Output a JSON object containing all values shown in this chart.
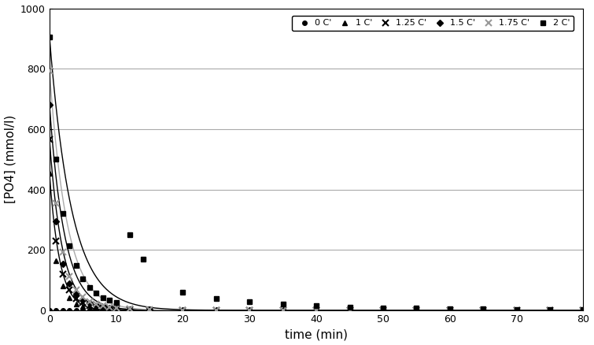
{
  "title": "",
  "xlabel": "time (min)",
  "ylabel": "[PO4] (mmol/l)",
  "xlim": [
    0,
    80
  ],
  "ylim": [
    0,
    1000
  ],
  "yticks": [
    0,
    200,
    400,
    600,
    800,
    1000
  ],
  "xticks": [
    0,
    10,
    20,
    30,
    40,
    50,
    60,
    70,
    80
  ],
  "background_color": "#ffffff",
  "grid_color": "#aaaaaa",
  "series": [
    {
      "label": "0 C'",
      "marker": "o",
      "color": "black",
      "markersize": 4,
      "t": [
        0,
        1,
        2,
        3,
        4,
        5,
        6,
        7,
        8,
        9,
        10,
        12,
        15,
        20,
        25,
        30,
        35,
        40,
        45,
        50,
        55,
        60,
        65,
        70,
        75,
        80
      ],
      "y": [
        0,
        0,
        0,
        0,
        0,
        0,
        0,
        0,
        0,
        0,
        0,
        0,
        0,
        0,
        0,
        0,
        0,
        0,
        0,
        0,
        0,
        0,
        0,
        0,
        0,
        0
      ],
      "C0": 0,
      "k": 1.0
    },
    {
      "label": "1 C'",
      "marker": "^",
      "color": "black",
      "markersize": 5,
      "t": [
        0,
        1,
        2,
        3,
        4,
        5,
        6,
        7,
        8,
        9,
        10,
        12,
        15,
        20,
        25,
        30,
        35,
        40,
        45,
        50,
        55,
        60,
        65,
        70,
        75,
        80
      ],
      "y": [
        453,
        165,
        80,
        42,
        22,
        12,
        7,
        4,
        3,
        2,
        1,
        1,
        0,
        0,
        0,
        0,
        0,
        0,
        0,
        0,
        0,
        0,
        0,
        0,
        0,
        0
      ],
      "C0": 453,
      "k": 0.65
    },
    {
      "label": "1.25 C'",
      "marker": "x",
      "color": "black",
      "markersize": 6,
      "t": [
        0,
        1,
        2,
        3,
        4,
        5,
        6,
        7,
        8,
        9,
        10,
        12,
        15,
        20,
        25,
        30,
        35,
        40,
        45,
        50,
        55,
        60,
        65,
        70,
        75,
        80
      ],
      "y": [
        566,
        230,
        120,
        68,
        40,
        25,
        16,
        11,
        8,
        5,
        4,
        2,
        1,
        0,
        0,
        0,
        0,
        0,
        0,
        0,
        0,
        0,
        0,
        0,
        0,
        0
      ],
      "C0": 566,
      "k": 0.52
    },
    {
      "label": "1.5 C'",
      "marker": "D",
      "color": "black",
      "markersize": 4,
      "t": [
        0,
        1,
        2,
        3,
        4,
        5,
        6,
        7,
        8,
        9,
        10,
        12,
        15,
        20,
        25,
        30,
        35,
        40,
        45,
        50,
        55,
        60,
        65,
        70,
        75,
        80
      ],
      "y": [
        680,
        295,
        155,
        88,
        54,
        35,
        23,
        16,
        11,
        8,
        6,
        3,
        2,
        1,
        0,
        0,
        0,
        0,
        0,
        0,
        0,
        0,
        0,
        0,
        0,
        0
      ],
      "C0": 680,
      "k": 0.44
    },
    {
      "label": "1.75 C'",
      "marker": "x",
      "color": "#999999",
      "markersize": 6,
      "t": [
        0,
        1,
        2,
        3,
        4,
        5,
        6,
        7,
        8,
        9,
        10,
        12,
        15,
        20,
        25,
        30,
        35,
        40,
        45,
        50,
        55,
        60,
        65,
        70,
        75,
        80
      ],
      "y": [
        793,
        355,
        193,
        112,
        68,
        44,
        29,
        20,
        15,
        11,
        8,
        5,
        3,
        1,
        1,
        0,
        0,
        0,
        0,
        0,
        0,
        0,
        0,
        0,
        0,
        0
      ],
      "C0": 793,
      "k": 0.38,
      "fit_color": "#aaaaaa"
    },
    {
      "label": "2 C'",
      "marker": "s",
      "color": "black",
      "markersize": 5,
      "t": [
        0,
        1,
        2,
        3,
        4,
        5,
        6,
        7,
        8,
        9,
        10,
        12,
        14,
        20,
        25,
        30,
        35,
        40,
        45,
        50,
        55,
        60,
        65,
        70,
        75,
        80
      ],
      "y": [
        906,
        500,
        320,
        215,
        148,
        105,
        76,
        57,
        43,
        33,
        25,
        250,
        170,
        60,
        40,
        28,
        20,
        15,
        11,
        9,
        7,
        5,
        4,
        3,
        2,
        2
      ],
      "C0": 906,
      "k": 0.3,
      "fit_color": "black"
    }
  ]
}
